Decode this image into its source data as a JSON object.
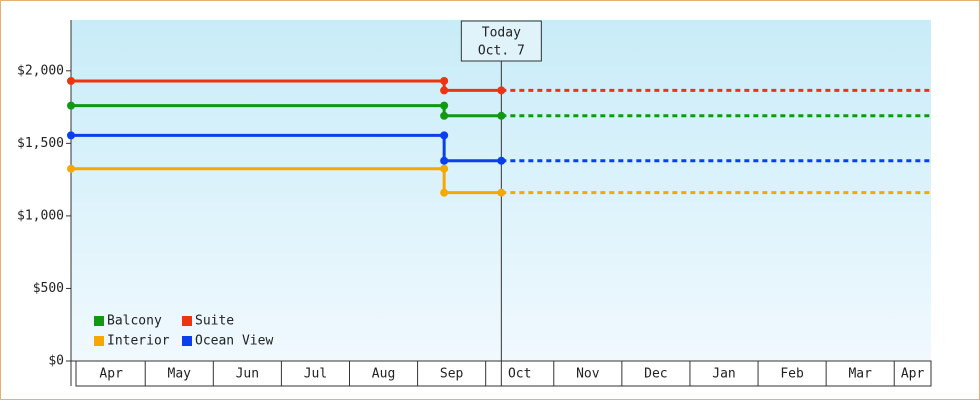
{
  "chart_data": {
    "type": "step-line",
    "categories": [
      "Apr",
      "May",
      "Jun",
      "Jul",
      "Aug",
      "Sep",
      "Oct",
      "Nov",
      "Dec",
      "Jan",
      "Feb",
      "Mar",
      "Apr"
    ],
    "xlim": [
      -0.09,
      12.54
    ],
    "ylim": [
      0,
      2350
    ],
    "yticks": [
      {
        "value": 0,
        "label": "$0"
      },
      {
        "value": 500,
        "label": "$500"
      },
      {
        "value": 1000,
        "label": "$1,000"
      },
      {
        "value": 1500,
        "label": "$1,500"
      },
      {
        "value": 2000,
        "label": "$2,000"
      }
    ],
    "today": {
      "lines": [
        "Today",
        "Oct. 7"
      ],
      "x": 6.23
    },
    "series": [
      {
        "name": "Balcony",
        "color": "#119911",
        "x": [
          -0.09,
          5.39,
          5.39,
          6.23
        ],
        "values": [
          1760,
          1760,
          1690,
          1690
        ]
      },
      {
        "name": "Suite",
        "color": "#ee3311",
        "x": [
          -0.09,
          5.39,
          5.39,
          6.23
        ],
        "values": [
          1930,
          1930,
          1865,
          1865
        ]
      },
      {
        "name": "Interior",
        "color": "#f5a800",
        "x": [
          -0.09,
          5.39,
          5.39,
          6.23
        ],
        "values": [
          1325,
          1325,
          1160,
          1160
        ]
      },
      {
        "name": "Ocean View",
        "color": "#0a3ff0",
        "x": [
          -0.09,
          5.39,
          5.39,
          6.23
        ],
        "values": [
          1555,
          1555,
          1380,
          1380
        ]
      }
    ]
  }
}
